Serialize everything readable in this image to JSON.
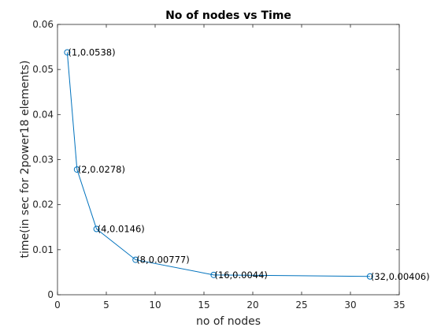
{
  "chart_data": {
    "type": "line",
    "title": "No of nodes vs Time",
    "xlabel": "no of nodes",
    "ylabel": "time(in sec for 2power18 elements)",
    "xlim": [
      0,
      35
    ],
    "ylim": [
      0,
      0.06
    ],
    "x_ticks": [
      "0",
      "5",
      "10",
      "15",
      "20",
      "25",
      "30",
      "35"
    ],
    "y_ticks": [
      "0",
      "0.01",
      "0.02",
      "0.03",
      "0.04",
      "0.05",
      "0.06"
    ],
    "grid": false,
    "legend": "none",
    "series": [
      {
        "x": [
          1,
          2,
          4,
          8,
          16,
          32
        ],
        "y": [
          0.0538,
          0.0278,
          0.0146,
          0.00777,
          0.0044,
          0.00406
        ],
        "marker": "circle",
        "color": "#0072bd"
      }
    ],
    "annotations": [
      "(1,0.0538)",
      "(2,0.0278)",
      "(4,0.0146)",
      "(8,0.00777)",
      "(16,0.0044)",
      "(32,0.00406)"
    ]
  }
}
